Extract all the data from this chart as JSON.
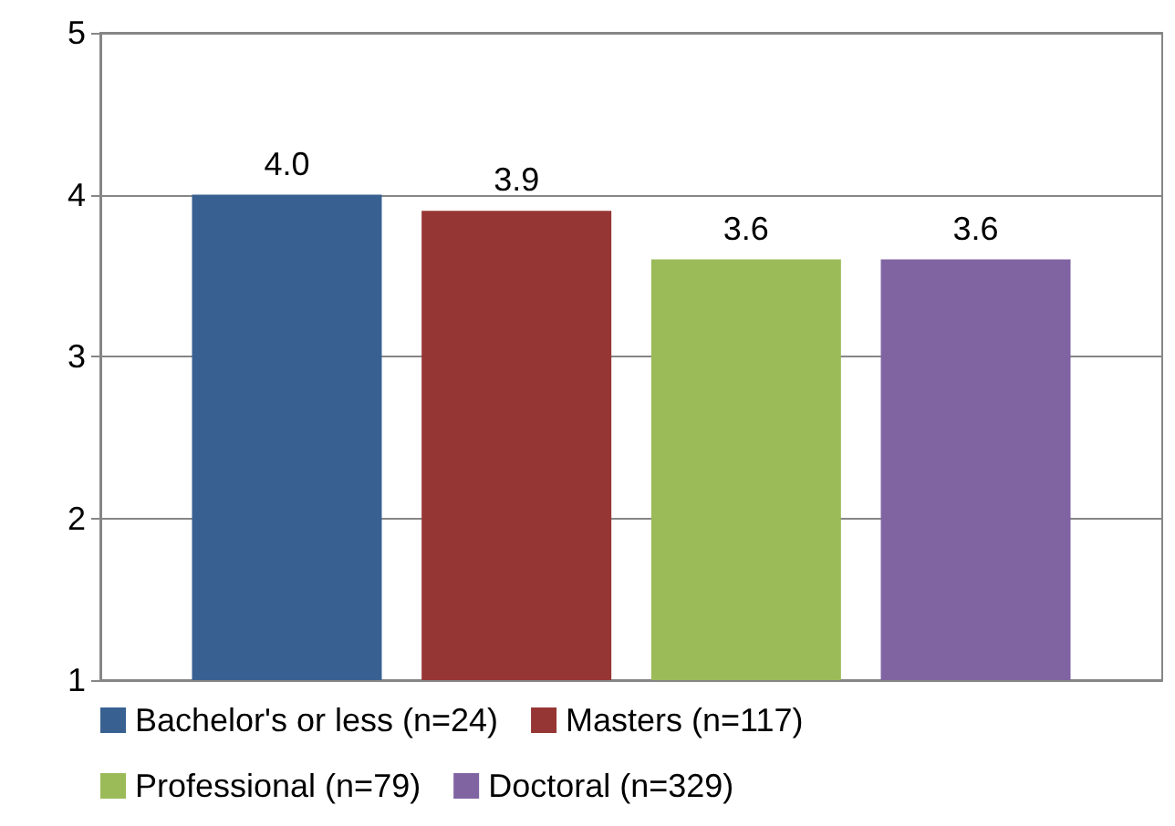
{
  "chart_data": {
    "type": "bar",
    "categories": [
      null
    ],
    "series": [
      {
        "name": "Bachelor's or less (n=24)",
        "color": "#386192",
        "values": [
          4.0
        ],
        "value_labels": [
          "4.0"
        ]
      },
      {
        "name": "Masters (n=117)",
        "color": "#963634",
        "values": [
          3.9
        ],
        "value_labels": [
          "3.9"
        ]
      },
      {
        "name": "Professional (n=79)",
        "color": "#9bbb59",
        "values": [
          3.6
        ],
        "value_labels": [
          "3.6"
        ]
      },
      {
        "name": "Doctoral (n=329)",
        "color": "#8064a2",
        "values": [
          3.6
        ],
        "value_labels": [
          "3.6"
        ]
      }
    ],
    "ylim": [
      1,
      5
    ],
    "yticks": [
      1,
      2,
      3,
      4,
      5
    ],
    "grid": "y",
    "legend": "bottom"
  }
}
